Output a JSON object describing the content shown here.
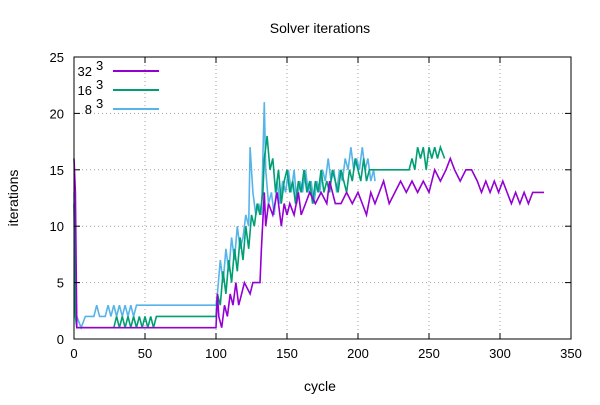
{
  "chart_data": {
    "type": "line",
    "title": "Solver iterations",
    "xlabel": "cycle",
    "ylabel": "iterations",
    "xlim": [
      0,
      350
    ],
    "ylim": [
      0,
      25
    ],
    "xticks": [
      0,
      50,
      100,
      150,
      200,
      250,
      300,
      350
    ],
    "yticks": [
      0,
      5,
      10,
      15,
      20,
      25
    ],
    "grid": true,
    "legend_position": "top-left",
    "series": [
      {
        "name": "32^3",
        "label_base": "32",
        "label_exp": "3",
        "color": "#9400d3",
        "points": [
          [
            0,
            16
          ],
          [
            1,
            13
          ],
          [
            2,
            1
          ],
          [
            100,
            1
          ],
          [
            101,
            4
          ],
          [
            102,
            2
          ],
          [
            104,
            1
          ],
          [
            106,
            3
          ],
          [
            108,
            2
          ],
          [
            110,
            4
          ],
          [
            112,
            3
          ],
          [
            114,
            5
          ],
          [
            116,
            3
          ],
          [
            118,
            4
          ],
          [
            120,
            5
          ],
          [
            124,
            4
          ],
          [
            126,
            5
          ],
          [
            131,
            5
          ],
          [
            132,
            8
          ],
          [
            134,
            13
          ],
          [
            135,
            10
          ],
          [
            137,
            12
          ],
          [
            140,
            11
          ],
          [
            143,
            13
          ],
          [
            146,
            10
          ],
          [
            148,
            12
          ],
          [
            150,
            11
          ],
          [
            152,
            12
          ],
          [
            155,
            11
          ],
          [
            158,
            13
          ],
          [
            160,
            11
          ],
          [
            163,
            12
          ],
          [
            166,
            13
          ],
          [
            170,
            12
          ],
          [
            174,
            13
          ],
          [
            178,
            12
          ],
          [
            180,
            14
          ],
          [
            184,
            12
          ],
          [
            188,
            12
          ],
          [
            192,
            13
          ],
          [
            196,
            12
          ],
          [
            200,
            13
          ],
          [
            203,
            12
          ],
          [
            206,
            11
          ],
          [
            209,
            13
          ],
          [
            212,
            12
          ],
          [
            215,
            13
          ],
          [
            218,
            14
          ],
          [
            222,
            12
          ],
          [
            226,
            13
          ],
          [
            230,
            14
          ],
          [
            234,
            13
          ],
          [
            238,
            14
          ],
          [
            242,
            13
          ],
          [
            246,
            14
          ],
          [
            250,
            13
          ],
          [
            254,
            15
          ],
          [
            258,
            14
          ],
          [
            262,
            15
          ],
          [
            265,
            16
          ],
          [
            268,
            15
          ],
          [
            272,
            14
          ],
          [
            276,
            15
          ],
          [
            280,
            15
          ],
          [
            284,
            14
          ],
          [
            287,
            13
          ],
          [
            290,
            14
          ],
          [
            293,
            13
          ],
          [
            296,
            14
          ],
          [
            299,
            13
          ],
          [
            302,
            14
          ],
          [
            305,
            13
          ],
          [
            308,
            12
          ],
          [
            311,
            13
          ],
          [
            314,
            12
          ],
          [
            317,
            13
          ],
          [
            320,
            12
          ],
          [
            323,
            13
          ],
          [
            326,
            13
          ],
          [
            331,
            13
          ]
        ]
      },
      {
        "name": "16^3",
        "label_base": "16",
        "label_exp": "3",
        "color": "#009e73",
        "points": [
          [
            0,
            12
          ],
          [
            1,
            2
          ],
          [
            2,
            1
          ],
          [
            28,
            1
          ],
          [
            30,
            2
          ],
          [
            32,
            1
          ],
          [
            34,
            2
          ],
          [
            36,
            1
          ],
          [
            38,
            2
          ],
          [
            40,
            1
          ],
          [
            42,
            2
          ],
          [
            44,
            1
          ],
          [
            46,
            2
          ],
          [
            48,
            1
          ],
          [
            50,
            2
          ],
          [
            52,
            1
          ],
          [
            54,
            2
          ],
          [
            56,
            1
          ],
          [
            58,
            2
          ],
          [
            60,
            2
          ],
          [
            100,
            2
          ],
          [
            101,
            4
          ],
          [
            103,
            3
          ],
          [
            105,
            6
          ],
          [
            107,
            4
          ],
          [
            109,
            7
          ],
          [
            111,
            5
          ],
          [
            113,
            8
          ],
          [
            115,
            6
          ],
          [
            117,
            9
          ],
          [
            119,
            7
          ],
          [
            121,
            10
          ],
          [
            123,
            8
          ],
          [
            125,
            11
          ],
          [
            127,
            10
          ],
          [
            129,
            12
          ],
          [
            131,
            11
          ],
          [
            133,
            13
          ],
          [
            134,
            16
          ],
          [
            136,
            18
          ],
          [
            138,
            15
          ],
          [
            140,
            16
          ],
          [
            142,
            13
          ],
          [
            144,
            15
          ],
          [
            146,
            12
          ],
          [
            148,
            14
          ],
          [
            150,
            15
          ],
          [
            152,
            13
          ],
          [
            154,
            14
          ],
          [
            156,
            12
          ],
          [
            158,
            14
          ],
          [
            160,
            13
          ],
          [
            162,
            15
          ],
          [
            164,
            13
          ],
          [
            166,
            14
          ],
          [
            168,
            12
          ],
          [
            170,
            14
          ],
          [
            172,
            13
          ],
          [
            174,
            15
          ],
          [
            176,
            13
          ],
          [
            178,
            14
          ],
          [
            180,
            13
          ],
          [
            182,
            15
          ],
          [
            184,
            14
          ],
          [
            186,
            13
          ],
          [
            188,
            15
          ],
          [
            190,
            14
          ],
          [
            192,
            13
          ],
          [
            194,
            15
          ],
          [
            196,
            14
          ],
          [
            198,
            16
          ],
          [
            200,
            15
          ],
          [
            202,
            14
          ],
          [
            204,
            16
          ],
          [
            206,
            14
          ],
          [
            208,
            15
          ],
          [
            210,
            15
          ],
          [
            236,
            15
          ],
          [
            238,
            16
          ],
          [
            240,
            15
          ],
          [
            242,
            17
          ],
          [
            244,
            16
          ],
          [
            246,
            17
          ],
          [
            248,
            15
          ],
          [
            250,
            17
          ],
          [
            252,
            16
          ],
          [
            254,
            17
          ],
          [
            256,
            16
          ],
          [
            258,
            17
          ],
          [
            261,
            16
          ]
        ]
      },
      {
        "name": "8^3",
        "label_base": "8",
        "label_exp": "3",
        "color": "#56b4e9",
        "points": [
          [
            0,
            13
          ],
          [
            1,
            5
          ],
          [
            2,
            2
          ],
          [
            5,
            1
          ],
          [
            8,
            2
          ],
          [
            14,
            2
          ],
          [
            16,
            3
          ],
          [
            18,
            2
          ],
          [
            22,
            2
          ],
          [
            24,
            3
          ],
          [
            26,
            2
          ],
          [
            28,
            3
          ],
          [
            30,
            2
          ],
          [
            32,
            3
          ],
          [
            34,
            2
          ],
          [
            36,
            3
          ],
          [
            38,
            2
          ],
          [
            40,
            3
          ],
          [
            42,
            2
          ],
          [
            44,
            3
          ],
          [
            46,
            3
          ],
          [
            100,
            3
          ],
          [
            101,
            4
          ],
          [
            103,
            7
          ],
          [
            105,
            5
          ],
          [
            107,
            8
          ],
          [
            109,
            6
          ],
          [
            111,
            9
          ],
          [
            113,
            7
          ],
          [
            115,
            10
          ],
          [
            117,
            8
          ],
          [
            119,
            9
          ],
          [
            121,
            11
          ],
          [
            123,
            10
          ],
          [
            124,
            17
          ],
          [
            126,
            13
          ],
          [
            128,
            11
          ],
          [
            130,
            12
          ],
          [
            132,
            11
          ],
          [
            134,
            21
          ],
          [
            135,
            15
          ],
          [
            137,
            12
          ],
          [
            139,
            13
          ],
          [
            141,
            11
          ],
          [
            143,
            14
          ],
          [
            145,
            12
          ],
          [
            147,
            14
          ],
          [
            149,
            13
          ],
          [
            151,
            15
          ],
          [
            153,
            13
          ],
          [
            155,
            15
          ],
          [
            157,
            12
          ],
          [
            159,
            14
          ],
          [
            161,
            13
          ],
          [
            163,
            15
          ],
          [
            165,
            13
          ],
          [
            167,
            14
          ],
          [
            169,
            12
          ],
          [
            171,
            14
          ],
          [
            173,
            13
          ],
          [
            175,
            15
          ],
          [
            177,
            14
          ],
          [
            179,
            16
          ],
          [
            181,
            14
          ],
          [
            183,
            15
          ],
          [
            185,
            13
          ],
          [
            187,
            15
          ],
          [
            189,
            14
          ],
          [
            191,
            16
          ],
          [
            193,
            15
          ],
          [
            195,
            17
          ],
          [
            197,
            15
          ],
          [
            199,
            16
          ],
          [
            201,
            15
          ],
          [
            203,
            17
          ],
          [
            205,
            15
          ],
          [
            207,
            16
          ],
          [
            209,
            14
          ],
          [
            211,
            15
          ],
          [
            212,
            14
          ]
        ]
      }
    ]
  }
}
